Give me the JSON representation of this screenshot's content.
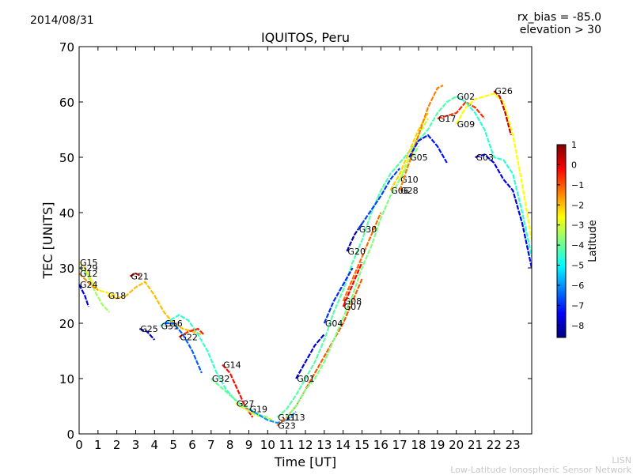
{
  "header": {
    "date": "2014/08/31",
    "rx_bias": "rx_bias = -85.0",
    "elevation": "elevation > 30"
  },
  "footer": {
    "line1": "LISN",
    "line2": "Low-Latitude Ionospheric Sensor Network"
  },
  "chart_data": {
    "type": "line",
    "title": "IQUITOS, Peru",
    "xlabel": "Time [UT]",
    "ylabel": "TEC [UNITS]",
    "xlim": [
      0,
      24
    ],
    "ylim": [
      0,
      70
    ],
    "xticks": [
      0,
      1,
      2,
      3,
      4,
      5,
      6,
      7,
      8,
      9,
      10,
      11,
      12,
      13,
      14,
      15,
      16,
      17,
      18,
      19,
      20,
      21,
      22,
      23
    ],
    "yticks": [
      0,
      10,
      20,
      30,
      40,
      50,
      60,
      70
    ],
    "grid": false,
    "colorbar": {
      "label": "Latitude",
      "range": [
        -8.6,
        1
      ],
      "ticks": [
        1,
        0,
        -1,
        -2,
        -3,
        -4,
        -5,
        -6,
        -7,
        -8
      ],
      "colors": [
        "#00007f",
        "#0000ff",
        "#007fff",
        "#00ffff",
        "#7fff7f",
        "#ffff00",
        "#ff7f00",
        "#ff0000",
        "#7f0000"
      ]
    },
    "series": [
      {
        "name": "G15",
        "lat": -2.5,
        "x": [
          0,
          0.3,
          0.6,
          1.0,
          1.5,
          2.0
        ],
        "y": [
          31,
          30,
          28,
          26,
          25.5,
          25
        ]
      },
      {
        "name": "G29",
        "lat": -3.5,
        "x": [
          0,
          0.4,
          0.8,
          1.2,
          1.6
        ],
        "y": [
          30,
          29,
          26,
          23.5,
          22
        ]
      },
      {
        "name": "G12",
        "lat": -1.5,
        "x": [
          0,
          0.3,
          0.6,
          1.0
        ],
        "y": [
          29,
          28,
          27,
          26
        ]
      },
      {
        "name": "G24",
        "lat": -7.5,
        "x": [
          0,
          0.3,
          0.5
        ],
        "y": [
          27,
          25,
          23
        ]
      },
      {
        "name": "G21",
        "lat": 0,
        "x": [
          2.7,
          3.0,
          3.3
        ],
        "y": [
          28.5,
          29,
          28.5
        ]
      },
      {
        "name": "G18",
        "lat": -2,
        "x": [
          1.5,
          2.0,
          2.5,
          3.0,
          3.5,
          4.0,
          4.5,
          5.0,
          5.5,
          6.0,
          6.5
        ],
        "y": [
          25,
          24.5,
          25,
          26.5,
          27.5,
          25,
          22,
          20,
          19,
          18.5,
          18
        ]
      },
      {
        "name": "G31",
        "lat": -4.5,
        "x": [
          4.3,
          4.8,
          5.3,
          5.8,
          6.3,
          6.8,
          7.3,
          7.8,
          8.3
        ],
        "y": [
          19.5,
          20.5,
          21.5,
          20.5,
          18,
          15,
          11,
          8,
          6
        ]
      },
      {
        "name": "G25",
        "lat": -8,
        "x": [
          3.2,
          3.6,
          4.0
        ],
        "y": [
          19,
          18.5,
          17
        ]
      },
      {
        "name": "G22",
        "lat": -0.5,
        "x": [
          5.3,
          5.8,
          6.3,
          6.6
        ],
        "y": [
          17.5,
          18.5,
          19,
          18
        ]
      },
      {
        "name": "G16",
        "lat": -6.5,
        "x": [
          4.5,
          5.0,
          5.5,
          6.0,
          6.5
        ],
        "y": [
          20,
          20,
          18,
          15,
          11
        ]
      },
      {
        "name": "G14",
        "lat": -0.3,
        "x": [
          7.6,
          8.0,
          8.4,
          8.8,
          9.2
        ],
        "y": [
          12.5,
          11,
          8,
          5,
          3
        ]
      },
      {
        "name": "G32",
        "lat": -4,
        "x": [
          7.0,
          7.5,
          8.0,
          8.5,
          9.0,
          9.5,
          10.0
        ],
        "y": [
          10,
          8.5,
          7,
          5.5,
          4.5,
          3.5,
          3
        ]
      },
      {
        "name": "G27",
        "lat": -3,
        "x": [
          8.3,
          8.8,
          9.3,
          9.8,
          10.3
        ],
        "y": [
          5.5,
          4.5,
          3.5,
          3,
          2.5
        ]
      },
      {
        "name": "G19",
        "lat": -6,
        "x": [
          9.0,
          9.5,
          10.0,
          10.5,
          11.0,
          11.5
        ],
        "y": [
          4.5,
          3.5,
          2.5,
          2,
          2.5,
          4
        ]
      },
      {
        "name": "G11",
        "lat": -4.2,
        "x": [
          10.5,
          11.0,
          11.5,
          12.0,
          12.5,
          13.0,
          13.5,
          14.0,
          14.5,
          15.0,
          15.5,
          16.0,
          16.5,
          17.0,
          17.5,
          18.0,
          18.5,
          19.0,
          19.5,
          20.0
        ],
        "y": [
          3,
          4.5,
          7,
          10,
          13,
          17,
          22,
          26,
          31,
          35,
          40,
          44,
          47,
          49,
          51,
          53,
          55,
          58,
          60,
          61
        ]
      },
      {
        "name": "G23",
        "lat": -1,
        "x": [
          10.5,
          11.0,
          11.5,
          12.0,
          12.5,
          13.0,
          13.5,
          14.0,
          14.5,
          15.0
        ],
        "y": [
          1.5,
          3,
          5,
          8,
          11,
          14,
          17,
          20,
          24,
          28
        ]
      },
      {
        "name": "G13",
        "lat": -3.8,
        "x": [
          11.0,
          11.5,
          12.0,
          12.5,
          13.0,
          13.5,
          14.0,
          14.5,
          15.0,
          15.5,
          16.0,
          16.5,
          17.0,
          17.5,
          18.0
        ],
        "y": [
          3,
          5,
          8,
          10,
          13,
          17,
          21,
          25,
          30,
          34,
          39,
          43,
          46,
          49,
          52
        ]
      },
      {
        "name": "G01",
        "lat": -7.8,
        "x": [
          11.5,
          12.0,
          12.5,
          13.0
        ],
        "y": [
          10,
          13,
          16,
          18
        ]
      },
      {
        "name": "G04",
        "lat": -7,
        "x": [
          13.0,
          13.5,
          14.0,
          14.5
        ],
        "y": [
          20,
          24,
          27,
          30
        ]
      },
      {
        "name": "G08",
        "lat": -1.2,
        "x": [
          14.0,
          14.5,
          15.0,
          15.5,
          16.0
        ],
        "y": [
          24,
          28,
          32,
          36,
          40
        ]
      },
      {
        "name": "G07",
        "lat": -0.2,
        "x": [
          14.0,
          14.5,
          15.0
        ],
        "y": [
          23,
          27,
          31
        ]
      },
      {
        "name": "G20",
        "lat": -8.2,
        "x": [
          14.2,
          14.6,
          15.0
        ],
        "y": [
          33,
          36,
          38
        ]
      },
      {
        "name": "G30",
        "lat": -6.8,
        "x": [
          14.8,
          15.2,
          15.6,
          16.0,
          16.5,
          17.0
        ],
        "y": [
          37,
          39,
          41,
          43,
          46,
          48
        ]
      },
      {
        "name": "G06",
        "lat": -2.2,
        "x": [
          16.5,
          17.0,
          17.5,
          18.0,
          18.5
        ],
        "y": [
          44,
          47,
          51,
          55,
          58
        ]
      },
      {
        "name": "G10",
        "lat": -3.2,
        "x": [
          17.0,
          17.5,
          18.0,
          18.5
        ],
        "y": [
          46,
          50,
          54,
          57
        ]
      },
      {
        "name": "G28",
        "lat": -1.4,
        "x": [
          17.0,
          17.5,
          18.0,
          18.5,
          19.0,
          19.3
        ],
        "y": [
          44,
          49,
          54,
          59,
          62.5,
          63
        ]
      },
      {
        "name": "G05",
        "lat": -7.2,
        "x": [
          17.5,
          18.0,
          18.5,
          19.0,
          19.5
        ],
        "y": [
          50,
          53,
          54,
          52,
          49
        ]
      },
      {
        "name": "G17",
        "lat": -0.6,
        "x": [
          19.0,
          19.5,
          20.0,
          20.5,
          21.0,
          21.5
        ],
        "y": [
          57,
          57.5,
          58,
          60,
          59,
          57
        ]
      },
      {
        "name": "G09",
        "lat": -2.6,
        "x": [
          20.0,
          20.5,
          21.0,
          21.5,
          22.0,
          22.5,
          23.0,
          23.5,
          24.0
        ],
        "y": [
          56,
          59,
          60.5,
          61,
          61.5,
          60,
          54,
          45,
          35
        ]
      },
      {
        "name": "G02",
        "lat": -4.6,
        "x": [
          20.0,
          20.5,
          21.0,
          21.5,
          22.0,
          22.5,
          23.0,
          23.5,
          24.0
        ],
        "y": [
          61,
          60,
          58,
          55,
          50,
          49.5,
          47,
          40,
          32
        ]
      },
      {
        "name": "G26",
        "lat": 0.3,
        "x": [
          22.0,
          22.3,
          22.6,
          22.9
        ],
        "y": [
          62,
          61,
          58,
          54
        ]
      },
      {
        "name": "G03",
        "lat": -7.6,
        "x": [
          21.0,
          21.5,
          22.0,
          22.5,
          23.0,
          23.5,
          24.0
        ],
        "y": [
          50,
          50.5,
          49,
          46,
          44,
          38,
          30
        ]
      }
    ]
  }
}
